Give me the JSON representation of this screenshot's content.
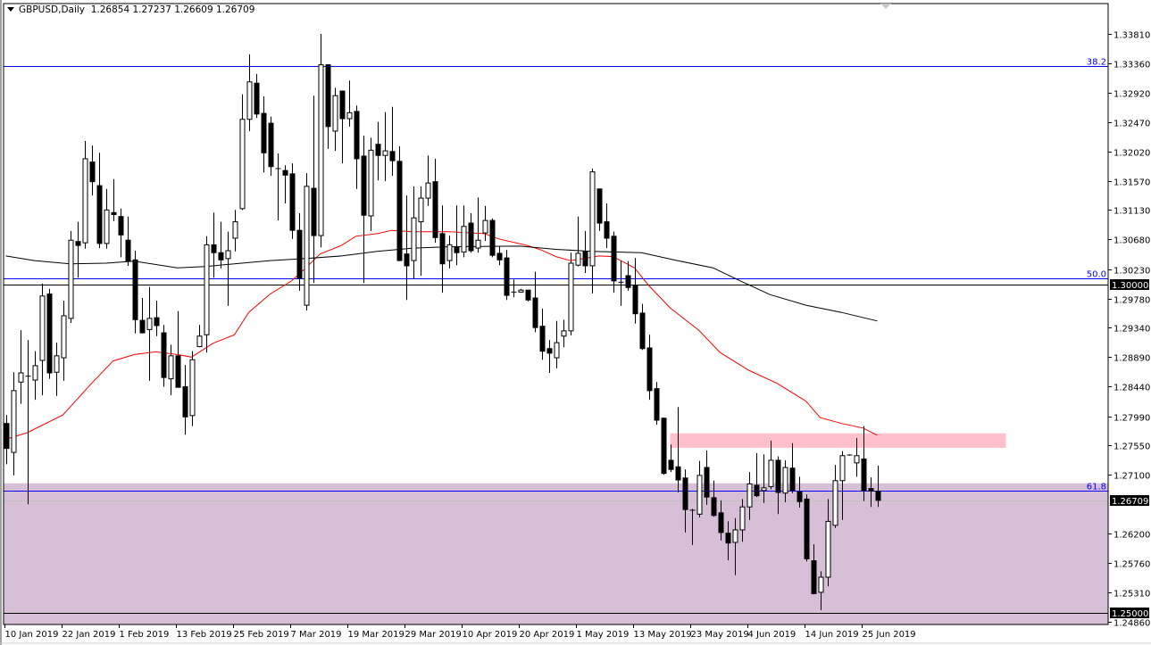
{
  "header": {
    "symbol": "GBPUSD,Daily",
    "ohlc": "1.26854 1.27237 1.26609 1.26709"
  },
  "chart_data": {
    "type": "candlestick",
    "symbol": "GBPUSD",
    "timeframe": "Daily",
    "ylim": [
      1.247,
      1.3434
    ],
    "grid": false,
    "colors": {
      "bull_body": "#ffffff",
      "bear_body": "#000000",
      "candle_outline": "#000000",
      "ma_fast": "#ff0000",
      "ma_slow": "#000000",
      "fib": "#0000ff",
      "support_zone": "#d8bfd8",
      "resistance_zone": "#ffc0cb",
      "axis_label_bg": "#000000"
    },
    "y_ticks": [
      "1.33810",
      "1.33360",
      "1.32920",
      "1.32470",
      "1.32020",
      "1.31570",
      "1.31130",
      "1.30680",
      "1.30230",
      "1.29780",
      "1.29340",
      "1.28890",
      "1.28440",
      "1.27990",
      "1.27550",
      "1.27100",
      "1.26200",
      "1.25760",
      "1.25310",
      "1.24860"
    ],
    "x_ticks": [
      {
        "label": "10 Jan 2019",
        "bar": 0
      },
      {
        "label": "22 Jan 2019",
        "bar": 8
      },
      {
        "label": "1 Feb 2019",
        "bar": 16
      },
      {
        "label": "13 Feb 2019",
        "bar": 24
      },
      {
        "label": "25 Feb 2019",
        "bar": 32
      },
      {
        "label": "7 Mar 2019",
        "bar": 40
      },
      {
        "label": "19 Mar 2019",
        "bar": 48
      },
      {
        "label": "29 Mar 2019",
        "bar": 56
      },
      {
        "label": "10 Apr 2019",
        "bar": 64
      },
      {
        "label": "20 Apr 2019",
        "bar": 72
      },
      {
        "label": "1 May 2019",
        "bar": 80
      },
      {
        "label": "13 May 2019",
        "bar": 88
      },
      {
        "label": "23 May 2019",
        "bar": 96
      },
      {
        "label": "4 Jun 2019",
        "bar": 104
      },
      {
        "label": "14 Jun 2019",
        "bar": 112
      },
      {
        "label": "25 Jun 2019",
        "bar": 120
      }
    ],
    "price_labels": [
      {
        "label": "1.30000",
        "price": 1.3
      },
      {
        "label": "1.26709",
        "price": 1.26709
      },
      {
        "label": "1.25000",
        "price": 1.25
      }
    ],
    "horizontal_lines": [
      {
        "price": 1.3,
        "color": "#000000"
      },
      {
        "price": 1.25,
        "color": "#000000"
      },
      {
        "price": 1.26709,
        "color": "#c0c0c0"
      }
    ],
    "fib_levels": [
      {
        "label": "38.2",
        "price": 1.3332
      },
      {
        "label": "50.0",
        "price": 1.3009
      },
      {
        "label": "61.8",
        "price": 1.2686
      }
    ],
    "zones": [
      {
        "name": "support",
        "top": 1.2697,
        "bottom": 1.247,
        "start_bar": -1,
        "end_bar": 160,
        "color": "#d8bfd8"
      },
      {
        "name": "resistance",
        "top": 1.2773,
        "bottom": 1.2751,
        "start_bar": 93,
        "end_bar": 140,
        "color": "#ffc0cb"
      }
    ],
    "ohlc_order": [
      "open",
      "high",
      "low",
      "close"
    ],
    "candles": [
      [
        1.2788,
        1.2801,
        1.2726,
        1.275
      ],
      [
        1.2744,
        1.2866,
        1.2709,
        1.2838
      ],
      [
        1.2851,
        1.293,
        1.2818,
        1.2865
      ],
      [
        1.286,
        1.2915,
        1.2665,
        1.286
      ],
      [
        1.2854,
        1.2898,
        1.2824,
        1.2876
      ],
      [
        1.2884,
        1.3001,
        1.2831,
        1.2982
      ],
      [
        1.2985,
        1.2993,
        1.2856,
        1.2865
      ],
      [
        1.2866,
        1.2911,
        1.283,
        1.2891
      ],
      [
        1.2888,
        1.2975,
        1.2853,
        1.2952
      ],
      [
        1.2948,
        1.3081,
        1.2941,
        1.3067
      ],
      [
        1.3065,
        1.3095,
        1.301,
        1.3059
      ],
      [
        1.3063,
        1.3218,
        1.3054,
        1.3191
      ],
      [
        1.3186,
        1.3211,
        1.3135,
        1.3156
      ],
      [
        1.315,
        1.32,
        1.3055,
        1.3062
      ],
      [
        1.3062,
        1.3145,
        1.3054,
        1.3113
      ],
      [
        1.3109,
        1.316,
        1.3096,
        1.3106
      ],
      [
        1.3103,
        1.3115,
        1.3041,
        1.3075
      ],
      [
        1.3067,
        1.3103,
        1.3028,
        1.3035
      ],
      [
        1.3037,
        1.3051,
        1.2925,
        1.2946
      ],
      [
        1.2945,
        1.2979,
        1.2925,
        1.2926
      ],
      [
        1.2931,
        1.2996,
        1.2853,
        1.2948
      ],
      [
        1.2949,
        1.2975,
        1.2921,
        1.2937
      ],
      [
        1.2926,
        1.2938,
        1.2844,
        1.2858
      ],
      [
        1.2856,
        1.2908,
        1.2831,
        1.2891
      ],
      [
        1.2891,
        1.2959,
        1.2843,
        1.2843
      ],
      [
        1.2844,
        1.2877,
        1.2771,
        1.2798
      ],
      [
        1.28,
        1.2898,
        1.2784,
        1.2885
      ],
      [
        1.2905,
        1.2938,
        1.2904,
        1.2921
      ],
      [
        1.2923,
        1.3073,
        1.2896,
        1.306
      ],
      [
        1.306,
        1.3109,
        1.301,
        1.3048
      ],
      [
        1.3048,
        1.3095,
        1.3024,
        1.3037
      ],
      [
        1.3039,
        1.308,
        1.2967,
        1.3051
      ],
      [
        1.307,
        1.3113,
        1.305,
        1.3095
      ],
      [
        1.3115,
        1.3289,
        1.3113,
        1.3251
      ],
      [
        1.3251,
        1.335,
        1.3233,
        1.3308
      ],
      [
        1.3306,
        1.332,
        1.3253,
        1.3259
      ],
      [
        1.326,
        1.3286,
        1.317,
        1.32
      ],
      [
        1.3245,
        1.3255,
        1.3165,
        1.3179
      ],
      [
        1.3176,
        1.3199,
        1.3097,
        1.3176
      ],
      [
        1.3173,
        1.3181,
        1.3123,
        1.3166
      ],
      [
        1.3168,
        1.3184,
        1.3069,
        1.3082
      ],
      [
        1.3082,
        1.3108,
        1.299,
        1.3009
      ],
      [
        1.2968,
        1.3169,
        1.296,
        1.3149
      ],
      [
        1.3146,
        1.3287,
        1.3002,
        1.3074
      ],
      [
        1.3074,
        1.3381,
        1.3056,
        1.3334
      ],
      [
        1.3334,
        1.3334,
        1.3206,
        1.324
      ],
      [
        1.3233,
        1.3299,
        1.3203,
        1.3287
      ],
      [
        1.3294,
        1.3294,
        1.3184,
        1.3252
      ],
      [
        1.3252,
        1.331,
        1.324,
        1.3261
      ],
      [
        1.3263,
        1.3272,
        1.3145,
        1.3191
      ],
      [
        1.3195,
        1.3226,
        1.3002,
        1.3105
      ],
      [
        1.3104,
        1.3223,
        1.3081,
        1.3204
      ],
      [
        1.3213,
        1.3247,
        1.3158,
        1.3196
      ],
      [
        1.3196,
        1.3262,
        1.3157,
        1.3203
      ],
      [
        1.3202,
        1.327,
        1.3165,
        1.3188
      ],
      [
        1.3187,
        1.321,
        1.3035,
        1.3036
      ],
      [
        1.3046,
        1.3135,
        1.2976,
        1.3028
      ],
      [
        1.3036,
        1.3149,
        1.3009,
        1.3101
      ],
      [
        1.3095,
        1.3149,
        1.3013,
        1.3131
      ],
      [
        1.3131,
        1.3196,
        1.3119,
        1.3154
      ],
      [
        1.3156,
        1.3191,
        1.3063,
        1.3071
      ],
      [
        1.3077,
        1.312,
        1.2987,
        1.3031
      ],
      [
        1.3036,
        1.3074,
        1.3024,
        1.306
      ],
      [
        1.3056,
        1.312,
        1.3029,
        1.3048
      ],
      [
        1.3049,
        1.312,
        1.3041,
        1.3088
      ],
      [
        1.3093,
        1.3108,
        1.3048,
        1.3051
      ],
      [
        1.3055,
        1.3132,
        1.3048,
        1.3067
      ],
      [
        1.3078,
        1.3119,
        1.3066,
        1.3097
      ],
      [
        1.3097,
        1.31,
        1.3041,
        1.3044
      ],
      [
        1.3047,
        1.3058,
        1.3029,
        1.3037
      ],
      [
        1.304,
        1.3052,
        1.2976,
        1.2983
      ],
      [
        1.2988,
        1.3007,
        1.298,
        1.2988
      ],
      [
        1.2988,
        1.2993,
        1.2987,
        1.2991
      ],
      [
        1.2991,
        1.2991,
        1.2974,
        1.2976
      ],
      [
        1.2979,
        1.3019,
        1.2927,
        1.2934
      ],
      [
        1.2936,
        1.2963,
        1.2885,
        1.2898
      ],
      [
        1.2902,
        1.2915,
        1.2865,
        1.2895
      ],
      [
        1.2888,
        1.2944,
        1.2872,
        1.2911
      ],
      [
        1.2921,
        1.2946,
        1.2904,
        1.2929
      ],
      [
        1.2929,
        1.3048,
        1.2922,
        1.3032
      ],
      [
        1.3029,
        1.3103,
        1.3027,
        1.3047
      ],
      [
        1.305,
        1.3081,
        1.3017,
        1.3028
      ],
      [
        1.3028,
        1.3176,
        1.2986,
        1.3171
      ],
      [
        1.3145,
        1.3145,
        1.3081,
        1.3093
      ],
      [
        1.3095,
        1.3123,
        1.3055,
        1.307
      ],
      [
        1.3073,
        1.308,
        1.2987,
        1.3005
      ],
      [
        1.3003,
        1.3036,
        1.2967,
        1.3003
      ],
      [
        1.3013,
        1.3035,
        1.299,
        1.2995
      ],
      [
        1.2998,
        1.304,
        1.294,
        1.2955
      ],
      [
        1.2956,
        1.297,
        1.29,
        1.2902
      ],
      [
        1.2903,
        1.2923,
        1.2824,
        1.2838
      ],
      [
        1.2841,
        1.2851,
        1.2786,
        1.2793
      ],
      [
        1.2796,
        1.2797,
        1.271,
        1.2712
      ],
      [
        1.2732,
        1.2756,
        1.2714,
        1.2718
      ],
      [
        1.2722,
        1.2813,
        1.2683,
        1.2702
      ],
      [
        1.2705,
        1.2718,
        1.2622,
        1.2657
      ],
      [
        1.2656,
        1.2658,
        1.2603,
        1.2656
      ],
      [
        1.265,
        1.2731,
        1.2645,
        1.2709
      ],
      [
        1.2721,
        1.2747,
        1.2664,
        1.2676
      ],
      [
        1.2675,
        1.2701,
        1.2646,
        1.2648
      ],
      [
        1.2652,
        1.2671,
        1.261,
        1.2622
      ],
      [
        1.2621,
        1.2639,
        1.258,
        1.2606
      ],
      [
        1.2607,
        1.2644,
        1.2557,
        1.2626
      ],
      [
        1.2626,
        1.2673,
        1.2608,
        1.2661
      ],
      [
        1.2661,
        1.2714,
        1.2641,
        1.2696
      ],
      [
        1.2694,
        1.2743,
        1.2676,
        1.2678
      ],
      [
        1.2686,
        1.2741,
        1.2667,
        1.269
      ],
      [
        1.2692,
        1.2762,
        1.2688,
        1.2732
      ],
      [
        1.2732,
        1.2738,
        1.265,
        1.2683
      ],
      [
        1.2682,
        1.2732,
        1.2668,
        1.2721
      ],
      [
        1.272,
        1.2758,
        1.2682,
        1.2686
      ],
      [
        1.2684,
        1.2707,
        1.266,
        1.2669
      ],
      [
        1.2673,
        1.268,
        1.2578,
        1.2582
      ],
      [
        1.2579,
        1.2604,
        1.2528,
        1.2529
      ],
      [
        1.2531,
        1.2563,
        1.2504,
        1.2554
      ],
      [
        1.2554,
        1.2673,
        1.254,
        1.2639
      ],
      [
        1.2633,
        1.2725,
        1.2629,
        1.2701
      ],
      [
        1.2701,
        1.2746,
        1.2641,
        1.2739
      ],
      [
        1.274,
        1.2741,
        1.2739,
        1.274
      ],
      [
        1.2728,
        1.2766,
        1.2707,
        1.2739
      ],
      [
        1.2734,
        1.2784,
        1.267,
        1.2686
      ],
      [
        1.2689,
        1.2706,
        1.2661,
        1.2685
      ],
      [
        1.2685,
        1.2724,
        1.2661,
        1.2671
      ]
    ],
    "moving_averages": [
      {
        "color": "#ff0000",
        "points": [
          [
            0,
            1.2764
          ],
          [
            3,
            1.2774
          ],
          [
            8,
            1.2801
          ],
          [
            12,
            1.2849
          ],
          [
            15,
            1.2883
          ],
          [
            18,
            1.2893
          ],
          [
            21,
            1.2897
          ],
          [
            24,
            1.2893
          ],
          [
            26,
            1.2889
          ],
          [
            29,
            1.291
          ],
          [
            32,
            1.2923
          ],
          [
            34,
            1.2957
          ],
          [
            37,
            1.2985
          ],
          [
            40,
            1.3005
          ],
          [
            42,
            1.3025
          ],
          [
            44,
            1.3046
          ],
          [
            47,
            1.3059
          ],
          [
            49,
            1.3073
          ],
          [
            52,
            1.3077
          ],
          [
            54,
            1.3082
          ],
          [
            57,
            1.308
          ],
          [
            62,
            1.308
          ],
          [
            67,
            1.3077
          ],
          [
            69,
            1.3069
          ],
          [
            73,
            1.3059
          ],
          [
            75,
            1.3052
          ],
          [
            77,
            1.3042
          ],
          [
            79,
            1.3036
          ],
          [
            81,
            1.3039
          ],
          [
            83,
            1.3043
          ],
          [
            85,
            1.3042
          ],
          [
            88,
            1.3025
          ],
          [
            90,
            1.2998
          ],
          [
            93,
            1.2964
          ],
          [
            97,
            1.293
          ],
          [
            100,
            1.2896
          ],
          [
            104,
            1.2869
          ],
          [
            108,
            1.2849
          ],
          [
            112,
            1.2822
          ],
          [
            114,
            1.2797
          ],
          [
            117,
            1.2788
          ],
          [
            120,
            1.2781
          ],
          [
            122,
            1.277
          ]
        ]
      },
      {
        "color": "#000000",
        "points": [
          [
            0,
            1.3043
          ],
          [
            4,
            1.3036
          ],
          [
            9,
            1.3031
          ],
          [
            14,
            1.3032
          ],
          [
            18,
            1.3035
          ],
          [
            24,
            1.3025
          ],
          [
            28,
            1.3027
          ],
          [
            32,
            1.3031
          ],
          [
            37,
            1.3036
          ],
          [
            42,
            1.3039
          ],
          [
            47,
            1.3043
          ],
          [
            52,
            1.305
          ],
          [
            57,
            1.3055
          ],
          [
            62,
            1.3057
          ],
          [
            72,
            1.3058
          ],
          [
            77,
            1.3053
          ],
          [
            82,
            1.305
          ],
          [
            89,
            1.3048
          ],
          [
            94,
            1.3036
          ],
          [
            99,
            1.3025
          ],
          [
            103,
            1.3004
          ],
          [
            107,
            1.2984
          ],
          [
            112,
            1.2968
          ],
          [
            117,
            1.2957
          ],
          [
            122,
            1.2944
          ]
        ]
      }
    ]
  }
}
